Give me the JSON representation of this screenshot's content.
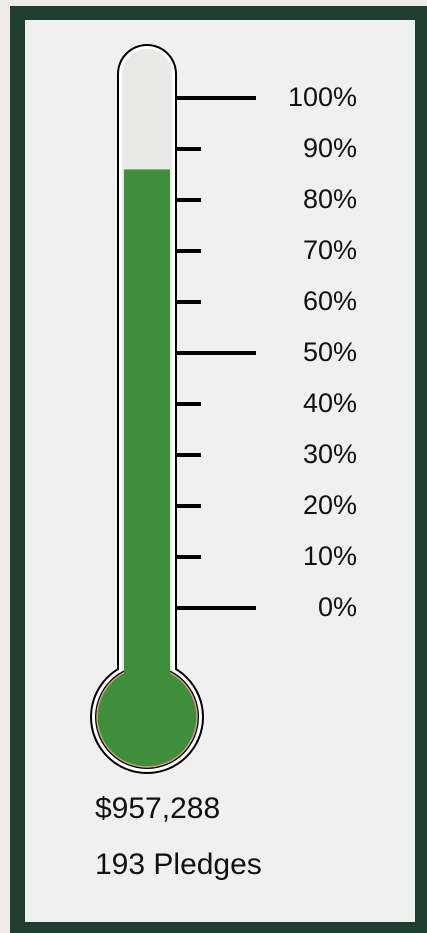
{
  "chart_data": {
    "type": "thermometer",
    "value": 86,
    "color": "#3e8e3b",
    "ylim": [
      0,
      100
    ],
    "yticks": [
      {
        "value": 0,
        "label": "0%"
      },
      {
        "value": 10,
        "label": "10%"
      },
      {
        "value": 20,
        "label": "20%"
      },
      {
        "value": 30,
        "label": "30%"
      },
      {
        "value": 40,
        "label": "40%"
      },
      {
        "value": 50,
        "label": "50%"
      },
      {
        "value": 60,
        "label": "60%"
      },
      {
        "value": 70,
        "label": "70%"
      },
      {
        "value": 80,
        "label": "80%"
      },
      {
        "value": 90,
        "label": "90%"
      },
      {
        "value": 100,
        "label": "100%"
      }
    ],
    "major_ticks": [
      0,
      50,
      100
    ],
    "annotations": [
      "$957,288",
      "193 Pledges"
    ]
  }
}
